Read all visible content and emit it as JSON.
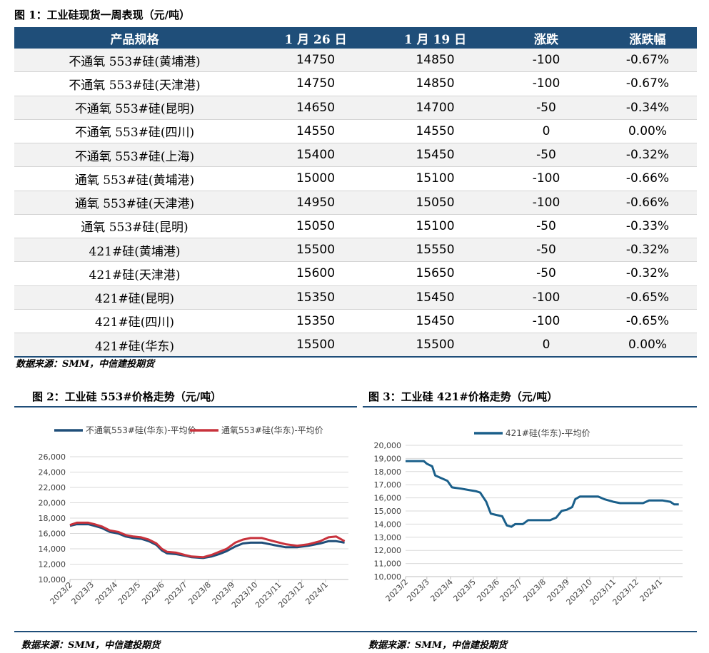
{
  "table_caption": "图 1：工业硅现货一周表现（元/吨）",
  "table": {
    "headers": [
      "产品规格",
      "1 月 26 日",
      "1 月 19 日",
      "涨跌",
      "涨跌幅"
    ],
    "rows": [
      [
        "不通氧 553#硅(黄埔港)",
        "14750",
        "14850",
        "-100",
        "-0.67%"
      ],
      [
        "不通氧 553#硅(天津港)",
        "14750",
        "14850",
        "-100",
        "-0.67%"
      ],
      [
        "不通氧 553#硅(昆明)",
        "14650",
        "14700",
        "-50",
        "-0.34%"
      ],
      [
        "不通氧 553#硅(四川)",
        "14550",
        "14550",
        "0",
        "0.00%"
      ],
      [
        "不通氧 553#硅(上海)",
        "15400",
        "15450",
        "-50",
        "-0.32%"
      ],
      [
        "通氧 553#硅(黄埔港)",
        "15000",
        "15100",
        "-100",
        "-0.66%"
      ],
      [
        "通氧 553#硅(天津港)",
        "14950",
        "15050",
        "-100",
        "-0.66%"
      ],
      [
        "通氧 553#硅(昆明)",
        "15050",
        "15100",
        "-50",
        "-0.33%"
      ],
      [
        "421#硅(黄埔港)",
        "15500",
        "15550",
        "-50",
        "-0.32%"
      ],
      [
        "421#硅(天津港)",
        "15600",
        "15650",
        "-50",
        "-0.32%"
      ],
      [
        "421#硅(昆明)",
        "15350",
        "15450",
        "-100",
        "-0.65%"
      ],
      [
        "421#硅(四川)",
        "15350",
        "15450",
        "-100",
        "-0.65%"
      ],
      [
        "421#硅(华东)",
        "15500",
        "15500",
        "0",
        "0.00%"
      ]
    ]
  },
  "source_1": "数据来源：SMM，中信建投期货",
  "chart2_caption": "图 2：工业硅 553#价格走势（元/吨）",
  "chart3_caption": "图 3：工业硅 421#价格走势（元/吨）",
  "source_2": "数据来源：SMM，中信建投期货",
  "source_3": "数据来源：SMM，中信建投期货",
  "colors": {
    "navy": "#1f4e79",
    "red": "#c8323c",
    "teal": "#1a5f8a"
  },
  "chart_data": [
    {
      "type": "line",
      "title": "",
      "xlabel": "",
      "ylabel": "",
      "ylim": [
        10000,
        26000
      ],
      "yticks": [
        "10,000",
        "12,000",
        "14,000",
        "16,000",
        "18,000",
        "20,000",
        "22,000",
        "24,000",
        "26,000"
      ],
      "categories": [
        "2023/2",
        "2023/3",
        "2023/4",
        "2023/5",
        "2023/6",
        "2023/7",
        "2023/8",
        "2023/9",
        "2023/10",
        "2023/11",
        "2023/12",
        "2024/1"
      ],
      "grid": true,
      "legend": "top",
      "series": [
        {
          "name": "不通氧553#硅(华东)-平均价",
          "color": "#1f4e79",
          "points": [
            [
              "2023/2/1",
              17000
            ],
            [
              "2023/2/10",
              17200
            ],
            [
              "2023/2/25",
              17200
            ],
            [
              "2023/3/5",
              17000
            ],
            [
              "2023/3/15",
              16700
            ],
            [
              "2023/3/25",
              16200
            ],
            [
              "2023/4/5",
              16000
            ],
            [
              "2023/4/15",
              15600
            ],
            [
              "2023/4/25",
              15400
            ],
            [
              "2023/5/5",
              15300
            ],
            [
              "2023/5/15",
              15000
            ],
            [
              "2023/5/25",
              14500
            ],
            [
              "2023/6/1",
              13800
            ],
            [
              "2023/6/8",
              13400
            ],
            [
              "2023/6/20",
              13300
            ],
            [
              "2023/7/1",
              13100
            ],
            [
              "2023/7/10",
              12900
            ],
            [
              "2023/7/25",
              12800
            ],
            [
              "2023/8/5",
              13000
            ],
            [
              "2023/8/15",
              13300
            ],
            [
              "2023/8/25",
              13700
            ],
            [
              "2023/9/5",
              14300
            ],
            [
              "2023/9/15",
              14700
            ],
            [
              "2023/9/25",
              14800
            ],
            [
              "2023/10/10",
              14800
            ],
            [
              "2023/10/25",
              14500
            ],
            [
              "2023/11/10",
              14200
            ],
            [
              "2023/11/25",
              14200
            ],
            [
              "2023/12/10",
              14400
            ],
            [
              "2023/12/25",
              14700
            ],
            [
              "2024/1/5",
              15000
            ],
            [
              "2024/1/15",
              15000
            ],
            [
              "2024/1/26",
              14800
            ]
          ]
        },
        {
          "name": "通氧553#硅(华东)-平均价",
          "color": "#c8323c",
          "points": [
            [
              "2023/2/1",
              17100
            ],
            [
              "2023/2/10",
              17400
            ],
            [
              "2023/2/25",
              17400
            ],
            [
              "2023/3/5",
              17200
            ],
            [
              "2023/3/15",
              16900
            ],
            [
              "2023/3/25",
              16400
            ],
            [
              "2023/4/5",
              16200
            ],
            [
              "2023/4/15",
              15800
            ],
            [
              "2023/4/25",
              15600
            ],
            [
              "2023/5/5",
              15500
            ],
            [
              "2023/5/15",
              15200
            ],
            [
              "2023/5/25",
              14700
            ],
            [
              "2023/6/1",
              14000
            ],
            [
              "2023/6/8",
              13600
            ],
            [
              "2023/6/20",
              13500
            ],
            [
              "2023/7/1",
              13200
            ],
            [
              "2023/7/10",
              13000
            ],
            [
              "2023/7/25",
              12900
            ],
            [
              "2023/8/5",
              13200
            ],
            [
              "2023/8/15",
              13600
            ],
            [
              "2023/8/25",
              14000
            ],
            [
              "2023/9/5",
              14800
            ],
            [
              "2023/9/15",
              15200
            ],
            [
              "2023/9/25",
              15400
            ],
            [
              "2023/10/10",
              15400
            ],
            [
              "2023/10/25",
              15000
            ],
            [
              "2023/11/10",
              14600
            ],
            [
              "2023/11/25",
              14400
            ],
            [
              "2023/12/10",
              14600
            ],
            [
              "2023/12/25",
              15000
            ],
            [
              "2024/1/5",
              15500
            ],
            [
              "2024/1/15",
              15600
            ],
            [
              "2024/1/26",
              15000
            ]
          ]
        }
      ]
    },
    {
      "type": "line",
      "title": "",
      "xlabel": "",
      "ylabel": "",
      "ylim": [
        10000,
        20000
      ],
      "yticks": [
        "10,000",
        "11,000",
        "12,000",
        "13,000",
        "14,000",
        "15,000",
        "16,000",
        "17,000",
        "18,000",
        "19,000",
        "20,000"
      ],
      "categories": [
        "2023/2",
        "2023/3",
        "2023/4",
        "2023/5",
        "2023/6",
        "2023/7",
        "2023/8",
        "2023/9",
        "2023/10",
        "2023/11",
        "2023/12",
        "2024/1"
      ],
      "grid": true,
      "legend": "top",
      "series": [
        {
          "name": "421#硅(华东)-平均价",
          "color": "#1a5f8a",
          "points": [
            [
              "2023/2/1",
              18800
            ],
            [
              "2023/2/25",
              18800
            ],
            [
              "2023/3/1",
              18600
            ],
            [
              "2023/3/8",
              18400
            ],
            [
              "2023/3/12",
              17700
            ],
            [
              "2023/3/20",
              17500
            ],
            [
              "2023/3/28",
              17300
            ],
            [
              "2023/4/3",
              16800
            ],
            [
              "2023/4/15",
              16700
            ],
            [
              "2023/4/25",
              16600
            ],
            [
              "2023/5/5",
              16500
            ],
            [
              "2023/5/10",
              16400
            ],
            [
              "2023/5/18",
              15700
            ],
            [
              "2023/5/24",
              14800
            ],
            [
              "2023/5/31",
              14700
            ],
            [
              "2023/6/8",
              14600
            ],
            [
              "2023/6/14",
              13900
            ],
            [
              "2023/6/20",
              13800
            ],
            [
              "2023/6/25",
              14000
            ],
            [
              "2023/7/5",
              14000
            ],
            [
              "2023/7/12",
              14300
            ],
            [
              "2023/7/25",
              14300
            ],
            [
              "2023/8/10",
              14300
            ],
            [
              "2023/8/18",
              14500
            ],
            [
              "2023/8/25",
              15000
            ],
            [
              "2023/9/1",
              15100
            ],
            [
              "2023/9/8",
              15300
            ],
            [
              "2023/9/12",
              15900
            ],
            [
              "2023/9/18",
              16100
            ],
            [
              "2023/10/1",
              16100
            ],
            [
              "2023/10/12",
              16100
            ],
            [
              "2023/10/20",
              15900
            ],
            [
              "2023/11/1",
              15700
            ],
            [
              "2023/11/10",
              15600
            ],
            [
              "2023/11/25",
              15600
            ],
            [
              "2023/12/10",
              15600
            ],
            [
              "2023/12/18",
              15800
            ],
            [
              "2024/1/5",
              15800
            ],
            [
              "2024/1/15",
              15700
            ],
            [
              "2024/1/20",
              15500
            ],
            [
              "2024/1/26",
              15500
            ]
          ]
        }
      ]
    }
  ]
}
